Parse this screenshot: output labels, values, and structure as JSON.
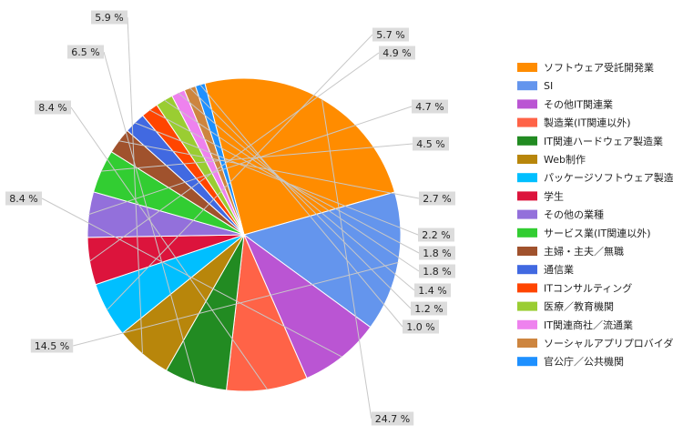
{
  "chart_data": {
    "type": "pie",
    "title": "",
    "value_suffix": " %",
    "legend_position": "right",
    "slices": [
      {
        "name": "ソフトウェア受託開発業",
        "value": 24.7,
        "color": "#ff8c00"
      },
      {
        "name": "SI",
        "value": 14.5,
        "color": "#6495ed"
      },
      {
        "name": "その他IT関連業",
        "value": 8.4,
        "color": "#ba55d3"
      },
      {
        "name": "製造業(IT関連以外)",
        "value": 8.4,
        "color": "#ff6347"
      },
      {
        "name": "IT関連ハードウェア製造業",
        "value": 6.5,
        "color": "#228b22"
      },
      {
        "name": "Web制作",
        "value": 5.9,
        "color": "#b8860b"
      },
      {
        "name": "パッケージソフトウェア製造業",
        "value": 5.7,
        "color": "#00bfff"
      },
      {
        "name": "学生",
        "value": 4.9,
        "color": "#dc143c"
      },
      {
        "name": "その他の業種",
        "value": 4.7,
        "color": "#9370db"
      },
      {
        "name": "サービス業(IT関連以外)",
        "value": 4.5,
        "color": "#32cd32"
      },
      {
        "name": "主婦・主夫／無職",
        "value": 2.7,
        "color": "#a0522d"
      },
      {
        "name": "通信業",
        "value": 2.2,
        "color": "#4169e1"
      },
      {
        "name": "ITコンサルティング",
        "value": 1.8,
        "color": "#ff4500"
      },
      {
        "name": "医療／教育機関",
        "value": 1.8,
        "color": "#9acd32"
      },
      {
        "name": "IT関連商社／流通業",
        "value": 1.4,
        "color": "#ee82ee"
      },
      {
        "name": "ソーシャルアプリプロバイダー",
        "value": 1.2,
        "color": "#cd853f"
      },
      {
        "name": "官公庁／公共機関",
        "value": 1.0,
        "color": "#1e90ff"
      }
    ]
  }
}
